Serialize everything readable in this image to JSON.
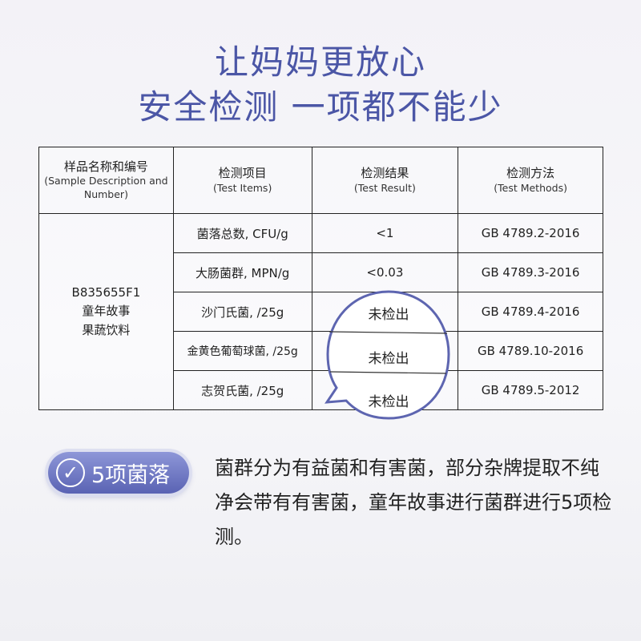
{
  "headline": {
    "line1": "让妈妈更放心",
    "line2": "安全检测 一项都不能少"
  },
  "table": {
    "headers": [
      {
        "zh": "样品名称和编号",
        "en": "(Sample Description and Number)"
      },
      {
        "zh": "检测项目",
        "en": "(Test Items)"
      },
      {
        "zh": "检测结果",
        "en": "(Test Result)"
      },
      {
        "zh": "检测方法",
        "en": "(Test Methods)"
      }
    ],
    "sample": {
      "code": "B835655F1",
      "name1": "童年故事",
      "name2": "果蔬饮料"
    },
    "rows": [
      {
        "item": "菌落总数, CFU/g",
        "result": "<1",
        "method": "GB 4789.2-2016"
      },
      {
        "item": "大肠菌群, MPN/g",
        "result": "<0.03",
        "method": "GB 4789.3-2016"
      },
      {
        "item": "沙门氏菌, /25g",
        "result": "未检出",
        "method": "GB 4789.4-2016"
      },
      {
        "item": "金黄色葡萄球菌, /25g",
        "result": "未检出",
        "method": "GB 4789.10-2016"
      },
      {
        "item": "志贺氏菌, /25g",
        "result": "未检出",
        "method": "GB 4789.5-2012"
      }
    ]
  },
  "badge": {
    "label": "5项菌落",
    "icon": "check-circle-icon"
  },
  "description": "菌群分为有益菌和有害菌，部分杂牌提取不纯净会带有有害菌，童年故事进行菌群进行5项检测。",
  "colors": {
    "accent": "#4b56a6",
    "badge": "#6b74c4"
  }
}
